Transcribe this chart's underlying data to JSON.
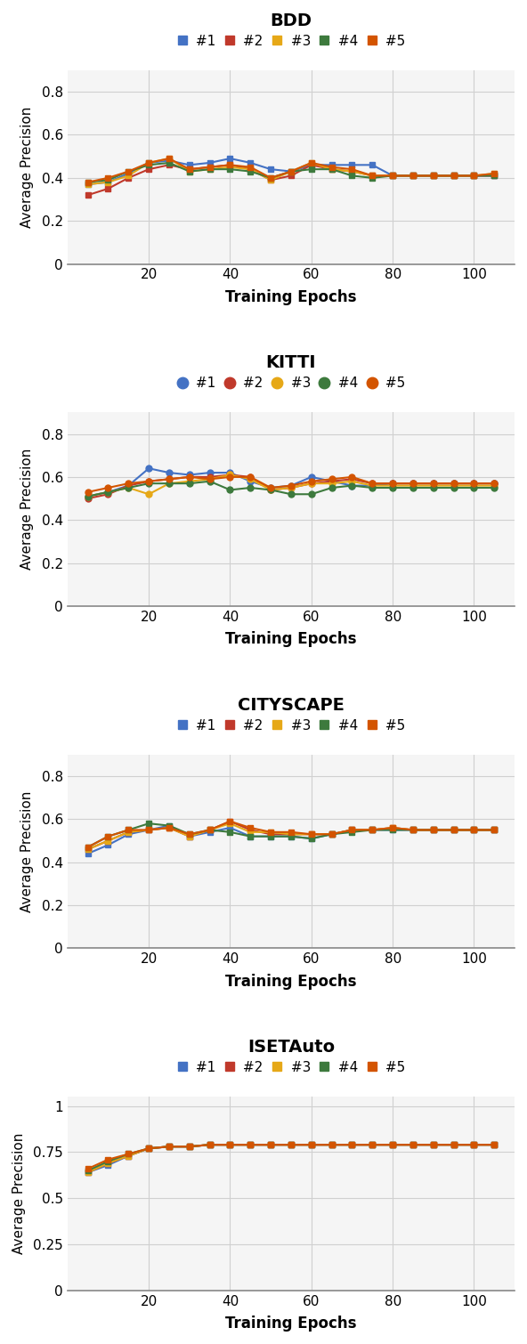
{
  "colors": {
    "#1": "#4472C4",
    "#2": "#C0392B",
    "#3": "#E6A817",
    "#4": "#3D7A3D",
    "#5": "#D35400"
  },
  "marker_styles": {
    "BDD": "s",
    "KITTI": "o",
    "CITYSCAPE": "s",
    "ISETAuto": "s"
  },
  "BDD": {
    "title": "BDD",
    "xlabel": "Training Epochs",
    "ylabel": "Average Precision",
    "ylim": [
      0,
      0.9
    ],
    "yticks": [
      0,
      0.2,
      0.4,
      0.6,
      0.8
    ],
    "x": [
      5,
      10,
      15,
      20,
      25,
      30,
      35,
      40,
      45,
      50,
      55,
      60,
      65,
      70,
      75,
      80,
      85,
      90,
      95,
      100,
      105
    ],
    "series": {
      "#1": [
        0.37,
        0.38,
        0.42,
        0.47,
        0.48,
        0.46,
        0.47,
        0.49,
        0.47,
        0.44,
        0.43,
        0.46,
        0.46,
        0.46,
        0.46,
        0.41,
        0.41,
        0.41,
        0.41,
        0.41,
        0.41
      ],
      "#2": [
        0.32,
        0.35,
        0.4,
        0.44,
        0.46,
        0.44,
        0.45,
        0.46,
        0.44,
        0.39,
        0.41,
        0.46,
        0.44,
        0.43,
        0.41,
        0.41,
        0.41,
        0.41,
        0.41,
        0.41,
        0.41
      ],
      "#3": [
        0.37,
        0.38,
        0.41,
        0.47,
        0.49,
        0.43,
        0.44,
        0.45,
        0.44,
        0.39,
        0.43,
        0.47,
        0.44,
        0.43,
        0.41,
        0.41,
        0.41,
        0.41,
        0.41,
        0.41,
        0.42
      ],
      "#4": [
        0.38,
        0.39,
        0.43,
        0.46,
        0.47,
        0.43,
        0.44,
        0.44,
        0.43,
        0.4,
        0.43,
        0.44,
        0.44,
        0.41,
        0.4,
        0.41,
        0.41,
        0.41,
        0.41,
        0.41,
        0.41
      ],
      "#5": [
        0.38,
        0.4,
        0.43,
        0.47,
        0.49,
        0.44,
        0.45,
        0.46,
        0.45,
        0.4,
        0.43,
        0.47,
        0.45,
        0.44,
        0.41,
        0.41,
        0.41,
        0.41,
        0.41,
        0.41,
        0.42
      ]
    }
  },
  "KITTI": {
    "title": "KITTI",
    "xlabel": "Training Epochs",
    "ylabel": "Average Precision",
    "ylim": [
      0,
      0.9
    ],
    "yticks": [
      0,
      0.2,
      0.4,
      0.6,
      0.8
    ],
    "x": [
      5,
      10,
      15,
      20,
      25,
      30,
      35,
      40,
      45,
      50,
      55,
      60,
      65,
      70,
      75,
      80,
      85,
      90,
      95,
      100,
      105
    ],
    "series": {
      "#1": [
        0.51,
        0.53,
        0.56,
        0.64,
        0.62,
        0.61,
        0.62,
        0.62,
        0.58,
        0.55,
        0.56,
        0.6,
        0.58,
        0.56,
        0.56,
        0.57,
        0.57,
        0.57,
        0.57,
        0.57,
        0.57
      ],
      "#2": [
        0.5,
        0.52,
        0.56,
        0.58,
        0.59,
        0.6,
        0.6,
        0.61,
        0.6,
        0.54,
        0.55,
        0.57,
        0.58,
        0.59,
        0.57,
        0.57,
        0.57,
        0.57,
        0.57,
        0.57,
        0.57
      ],
      "#3": [
        0.51,
        0.53,
        0.55,
        0.52,
        0.57,
        0.58,
        0.59,
        0.61,
        0.59,
        0.54,
        0.55,
        0.57,
        0.57,
        0.58,
        0.56,
        0.56,
        0.56,
        0.56,
        0.56,
        0.56,
        0.56
      ],
      "#4": [
        0.51,
        0.53,
        0.55,
        0.57,
        0.57,
        0.57,
        0.58,
        0.54,
        0.55,
        0.54,
        0.52,
        0.52,
        0.55,
        0.56,
        0.55,
        0.55,
        0.55,
        0.55,
        0.55,
        0.55,
        0.55
      ],
      "#5": [
        0.53,
        0.55,
        0.57,
        0.58,
        0.59,
        0.6,
        0.59,
        0.6,
        0.6,
        0.55,
        0.56,
        0.58,
        0.59,
        0.6,
        0.57,
        0.57,
        0.57,
        0.57,
        0.57,
        0.57,
        0.57
      ]
    }
  },
  "CITYSCAPE": {
    "title": "CITYSCAPE",
    "xlabel": "Training Epochs",
    "ylabel": "Average Precision",
    "ylim": [
      0,
      0.9
    ],
    "yticks": [
      0,
      0.2,
      0.4,
      0.6,
      0.8
    ],
    "x": [
      5,
      10,
      15,
      20,
      25,
      30,
      35,
      40,
      45,
      50,
      55,
      60,
      65,
      70,
      75,
      80,
      85,
      90,
      95,
      100,
      105
    ],
    "series": {
      "#1": [
        0.44,
        0.48,
        0.53,
        0.55,
        0.57,
        0.52,
        0.54,
        0.56,
        0.52,
        0.52,
        0.52,
        0.51,
        0.53,
        0.55,
        0.55,
        0.55,
        0.55,
        0.55,
        0.55,
        0.55,
        0.55
      ],
      "#2": [
        0.46,
        0.5,
        0.54,
        0.55,
        0.56,
        0.52,
        0.55,
        0.59,
        0.55,
        0.53,
        0.53,
        0.53,
        0.53,
        0.55,
        0.55,
        0.56,
        0.55,
        0.55,
        0.55,
        0.55,
        0.55
      ],
      "#3": [
        0.46,
        0.5,
        0.54,
        0.55,
        0.56,
        0.52,
        0.55,
        0.58,
        0.54,
        0.54,
        0.53,
        0.53,
        0.53,
        0.55,
        0.55,
        0.56,
        0.55,
        0.55,
        0.55,
        0.55,
        0.55
      ],
      "#4": [
        0.47,
        0.52,
        0.55,
        0.58,
        0.57,
        0.53,
        0.55,
        0.54,
        0.52,
        0.52,
        0.52,
        0.51,
        0.53,
        0.54,
        0.55,
        0.55,
        0.55,
        0.55,
        0.55,
        0.55,
        0.55
      ],
      "#5": [
        0.47,
        0.52,
        0.55,
        0.55,
        0.56,
        0.53,
        0.55,
        0.59,
        0.56,
        0.54,
        0.54,
        0.53,
        0.53,
        0.55,
        0.55,
        0.56,
        0.55,
        0.55,
        0.55,
        0.55,
        0.55
      ]
    }
  },
  "ISETAuto": {
    "title": "ISETAuto",
    "xlabel": "Training Epochs",
    "ylabel": "Average Precision",
    "ylim": [
      0,
      1.05
    ],
    "yticks": [
      0,
      0.25,
      0.5,
      0.75,
      1.0
    ],
    "x": [
      5,
      10,
      15,
      20,
      25,
      30,
      35,
      40,
      45,
      50,
      55,
      60,
      65,
      70,
      75,
      80,
      85,
      90,
      95,
      100,
      105
    ],
    "series": {
      "#1": [
        0.64,
        0.68,
        0.73,
        0.77,
        0.78,
        0.78,
        0.79,
        0.79,
        0.79,
        0.79,
        0.79,
        0.79,
        0.79,
        0.79,
        0.79,
        0.79,
        0.79,
        0.79,
        0.79,
        0.79,
        0.79
      ],
      "#2": [
        0.64,
        0.69,
        0.73,
        0.77,
        0.78,
        0.78,
        0.79,
        0.79,
        0.79,
        0.79,
        0.79,
        0.79,
        0.79,
        0.79,
        0.79,
        0.79,
        0.79,
        0.79,
        0.79,
        0.79,
        0.79
      ],
      "#3": [
        0.64,
        0.69,
        0.73,
        0.77,
        0.78,
        0.78,
        0.79,
        0.79,
        0.79,
        0.79,
        0.79,
        0.79,
        0.79,
        0.79,
        0.79,
        0.79,
        0.79,
        0.79,
        0.79,
        0.79,
        0.79
      ],
      "#4": [
        0.65,
        0.7,
        0.74,
        0.77,
        0.78,
        0.78,
        0.79,
        0.79,
        0.79,
        0.79,
        0.79,
        0.79,
        0.79,
        0.79,
        0.79,
        0.79,
        0.79,
        0.79,
        0.79,
        0.79,
        0.79
      ],
      "#5": [
        0.66,
        0.71,
        0.74,
        0.77,
        0.78,
        0.78,
        0.79,
        0.79,
        0.79,
        0.79,
        0.79,
        0.79,
        0.79,
        0.79,
        0.79,
        0.79,
        0.79,
        0.79,
        0.79,
        0.79,
        0.79
      ]
    }
  },
  "legend_labels": [
    "#1",
    "#2",
    "#3",
    "#4",
    "#5"
  ],
  "xticks": [
    20,
    40,
    60,
    80,
    100
  ],
  "bg_color": "#f5f5f5",
  "grid_color": "#d0d0d0",
  "title_fontsize": 14,
  "label_fontsize": 12,
  "tick_fontsize": 11,
  "legend_fontsize": 11
}
